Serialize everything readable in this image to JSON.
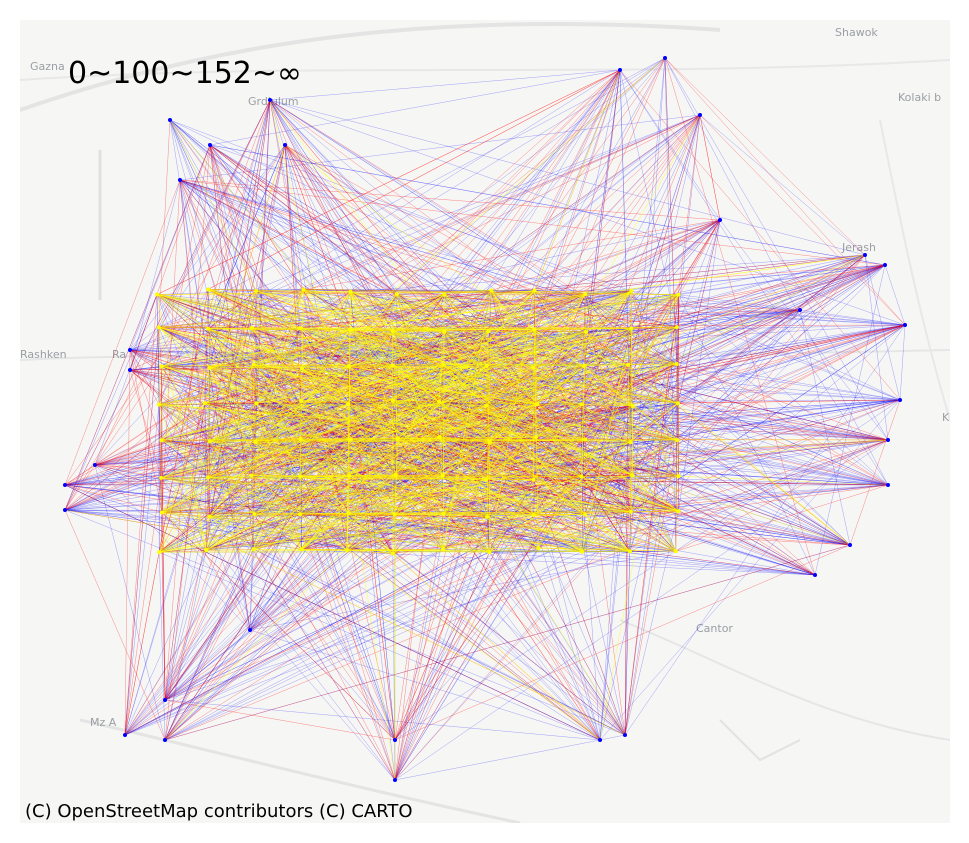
{
  "legend_bins": "0~100~152~∞",
  "attribution": "(C) OpenStreetMap contributors (C) CARTO",
  "place_labels": {
    "gazna": "Gazna",
    "shawok": "Shawok",
    "kolaki": "Kolaki b",
    "rashken": "Rashken",
    "grdiulum": "Grdiulum",
    "mz": "Mz A",
    "jerash": "Jerash",
    "cantor": "Cantor",
    "ra": "Ra",
    "k": "K"
  },
  "colors": {
    "bin_low": "#0000ff",
    "bin_mid": "#ff0000",
    "bin_high": "#ffff00",
    "map_background": "#f6f6f4",
    "road": "#e2e2e2"
  }
}
